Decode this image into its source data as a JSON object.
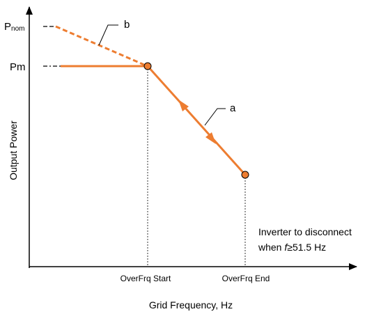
{
  "axes": {
    "y_label": "Output Power",
    "x_label": "Grid Frequency, Hz"
  },
  "labels": {
    "pnom_main": "P",
    "pnom_sub": "nom",
    "pm": "Pm",
    "x_start": "OverFrq Start",
    "x_end": "OverFrq End",
    "curve_a": "a",
    "curve_b": "b",
    "note_line1": "Inverter to disconnect",
    "note_line2_prefix": "when ",
    "note_line2_var": "f",
    "note_line2_op": "≥",
    "note_line2_value": "51.5 Hz"
  },
  "colors": {
    "curve": "#ED7D31",
    "point_fill": "#ED7D31",
    "axis": "#000000",
    "guide": "#000000"
  }
}
